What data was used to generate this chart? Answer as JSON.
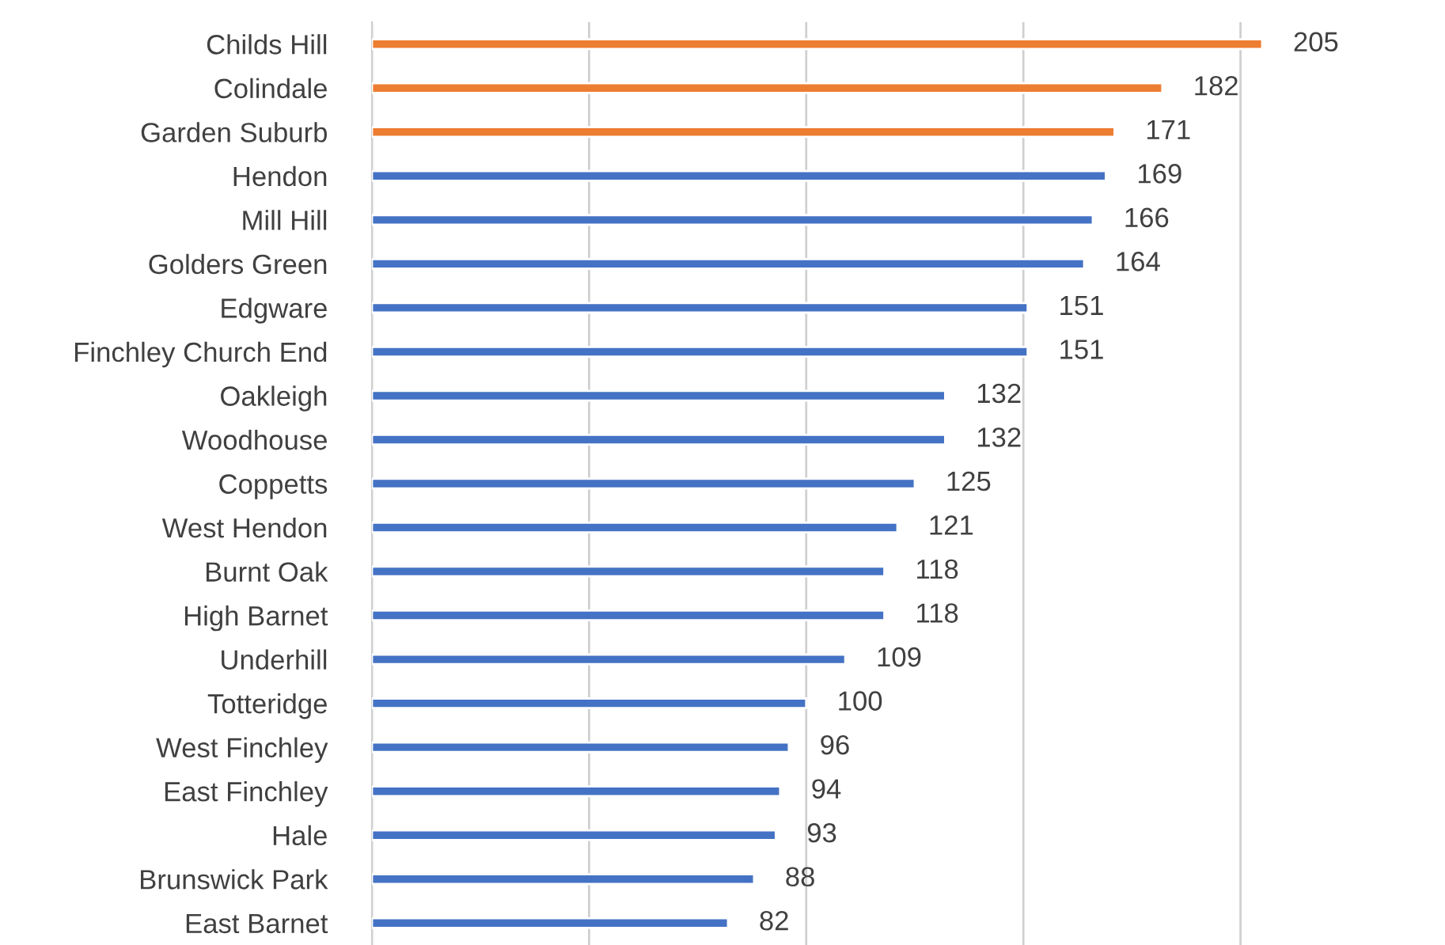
{
  "chart_data": {
    "type": "bar",
    "orientation": "horizontal",
    "categories": [
      "Childs Hill",
      "Colindale",
      "Garden Suburb",
      "Hendon",
      "Mill Hill",
      "Golders Green",
      "Edgware",
      "Finchley Church End",
      "Oakleigh",
      "Woodhouse",
      "Coppetts",
      "West Hendon",
      "Burnt Oak",
      "High Barnet",
      "Underhill",
      "Totteridge",
      "West Finchley",
      "East Finchley",
      "Hale",
      "Brunswick Park",
      "East Barnet"
    ],
    "values": [
      205,
      182,
      171,
      169,
      166,
      164,
      151,
      151,
      132,
      132,
      125,
      121,
      118,
      118,
      109,
      100,
      96,
      94,
      93,
      88,
      82
    ],
    "colors": [
      "#ed7d31",
      "#ed7d31",
      "#ed7d31",
      "#4472c4",
      "#4472c4",
      "#4472c4",
      "#4472c4",
      "#4472c4",
      "#4472c4",
      "#4472c4",
      "#4472c4",
      "#4472c4",
      "#4472c4",
      "#4472c4",
      "#4472c4",
      "#4472c4",
      "#4472c4",
      "#4472c4",
      "#4472c4",
      "#4472c4",
      "#4472c4"
    ],
    "xticks": [
      {
        "value": 0,
        "label": null
      },
      {
        "value": 50,
        "label": null
      },
      {
        "value": 100,
        "label": null
      },
      {
        "value": 150,
        "label": null
      },
      {
        "value": 200,
        "label": null
      }
    ],
    "grid": "x",
    "tick_labels": "y",
    "data_labels": true,
    "legend": false
  }
}
